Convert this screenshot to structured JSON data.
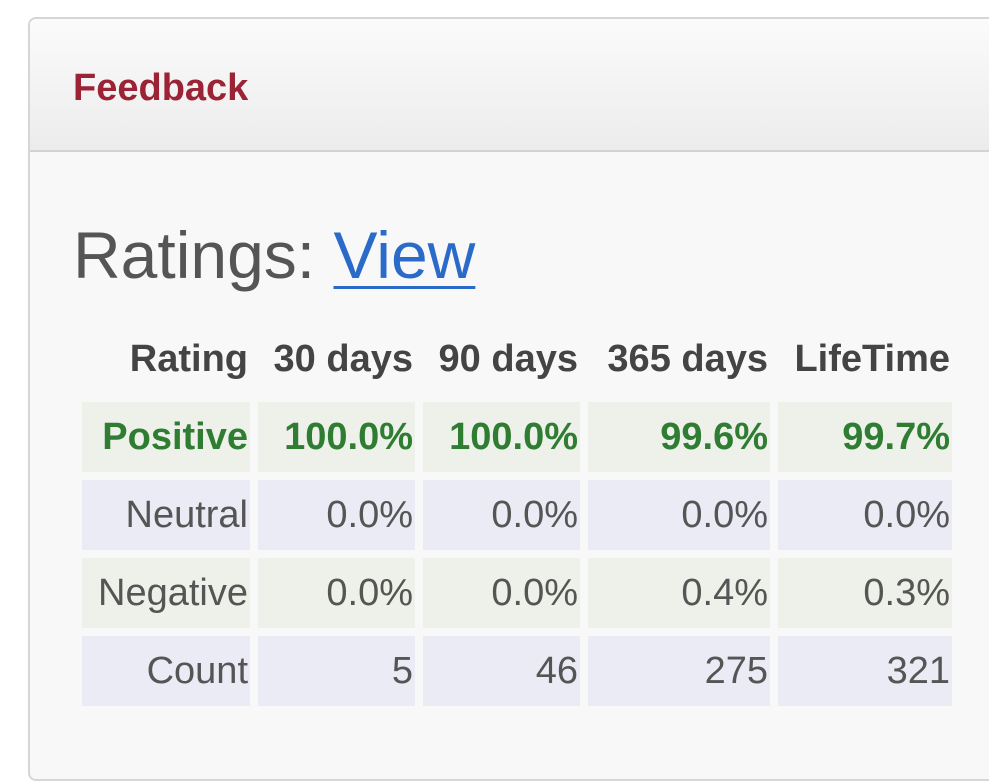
{
  "panel": {
    "title": "Feedback"
  },
  "heading": {
    "label": "Ratings:",
    "link": "View"
  },
  "table": {
    "header": [
      "Rating",
      "30 days",
      "90 days",
      "365 days",
      "LifeTime"
    ],
    "rows": [
      [
        "Positive",
        "100.0%",
        "100.0%",
        "99.6%",
        "99.7%"
      ],
      [
        "Neutral",
        "0.0%",
        "0.0%",
        "0.0%",
        "0.0%"
      ],
      [
        "Negative",
        "0.0%",
        "0.0%",
        "0.4%",
        "0.3%"
      ],
      [
        "Count",
        5,
        46,
        275,
        321
      ]
    ]
  }
}
